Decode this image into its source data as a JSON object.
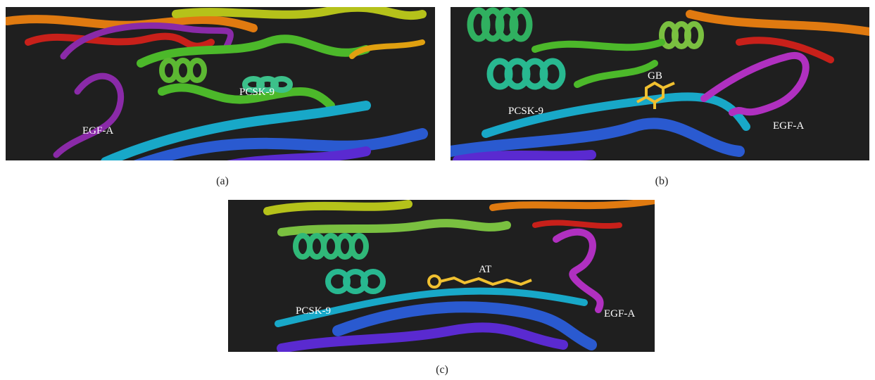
{
  "panels": [
    {
      "caption": "(a)",
      "labels": [
        "EGF-A",
        "PCSK-9"
      ]
    },
    {
      "caption": "(b)",
      "labels": [
        "GB",
        "PCSK-9",
        "EGF-A"
      ]
    },
    {
      "caption": "(c)",
      "labels": [
        "AT",
        "PCSK-9",
        "EGF-A"
      ]
    }
  ]
}
